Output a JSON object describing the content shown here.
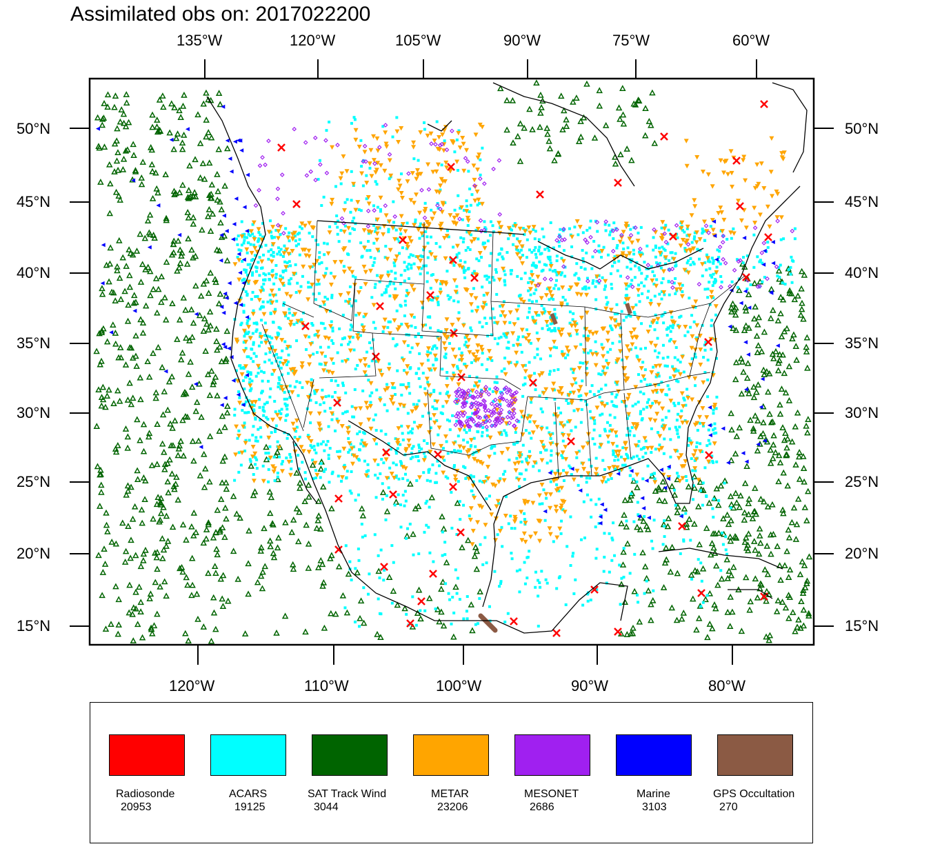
{
  "title": "Assimilated obs on: 2017022200",
  "top_axis_labels": [
    "135°W",
    "120°W",
    "105°W",
    "90°W",
    "75°W",
    "60°W"
  ],
  "bottom_axis_labels": [
    "120°W",
    "110°W",
    "100°W",
    "90°W",
    "80°W"
  ],
  "lat_labels": [
    "50°N",
    "45°N",
    "40°N",
    "35°N",
    "30°N",
    "25°N",
    "20°N",
    "15°N"
  ],
  "legend": [
    {
      "name": "Radiosonde",
      "count": "20953",
      "color": "#ff0000"
    },
    {
      "name": "ACARS",
      "count": "19125",
      "color": "#00ffff"
    },
    {
      "name": "SAT Track Wind",
      "count": "3044",
      "color": "#006400"
    },
    {
      "name": "METAR",
      "count": "23206",
      "color": "#ffa500"
    },
    {
      "name": "MESONET",
      "count": "2686",
      "color": "#a020f0"
    },
    {
      "name": "Marine",
      "count": "3103",
      "color": "#0000ff"
    },
    {
      "name": "GPS Occultation",
      "count": "270",
      "color": "#8b5a44"
    }
  ]
}
